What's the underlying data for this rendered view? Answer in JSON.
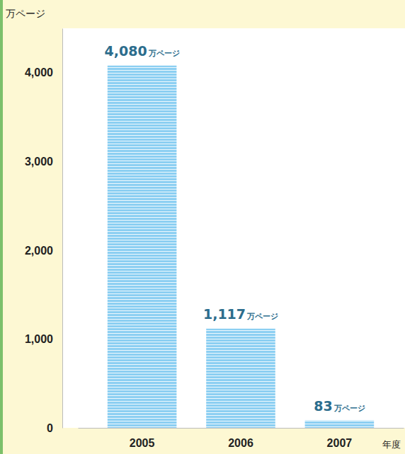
{
  "chart_data": {
    "type": "bar",
    "categories": [
      "2005",
      "2006",
      "2007"
    ],
    "values": [
      4080,
      1117,
      83
    ],
    "value_labels": [
      "4,080万ページ",
      "1,117万ページ",
      "83万ページ"
    ],
    "data_labels": true,
    "color": "#8ccff2",
    "ylabel": "万ページ",
    "xlabel": "年度",
    "ylim": [
      0,
      4500
    ],
    "yticks": [
      0,
      {
        "value": 1000,
        "label": "1,000"
      },
      {
        "value": 2000,
        "label": "2,000"
      },
      {
        "value": 3000,
        "label": "3,000"
      },
      {
        "value": 4000,
        "label": "4,000"
      }
    ],
    "grid": false
  }
}
